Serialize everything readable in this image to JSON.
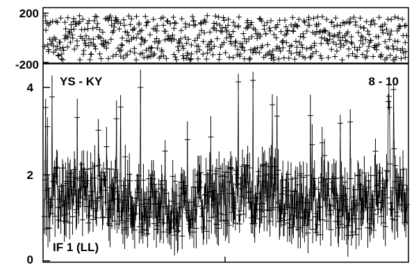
{
  "chart_data": [
    {
      "type": "scatter",
      "panel": "phase",
      "title": "",
      "xlabel": "",
      "ylabel": "",
      "ylim": [
        -200,
        200
      ],
      "y_ticks": [
        -200,
        200
      ],
      "tick_labels": [
        "200",
        "-200"
      ],
      "grid": false,
      "marker": "plus-with-errorbars",
      "n_points": 620,
      "values_summary": "points scattered roughly uniformly between about -180 and 180 degrees"
    },
    {
      "type": "scatter",
      "panel": "amplitude",
      "title": "",
      "xlabel": "",
      "ylabel": "",
      "ylim": [
        0,
        4.5
      ],
      "y_ticks": [
        0,
        2,
        4
      ],
      "tick_labels": [
        "0",
        "2",
        "4"
      ],
      "annotations": {
        "baseline": "YS - KY",
        "channels": "8 - 10",
        "polarization": "IF 1 (LL)"
      },
      "grid": false,
      "marker": "plus-with-errorbars",
      "n_points": 620,
      "values_summary": "amplitudes mostly between about 0.6 and 2.2, occasional peaks up to about 4.3"
    }
  ],
  "style": {
    "ink": "#000000",
    "background": "#ffffff"
  }
}
